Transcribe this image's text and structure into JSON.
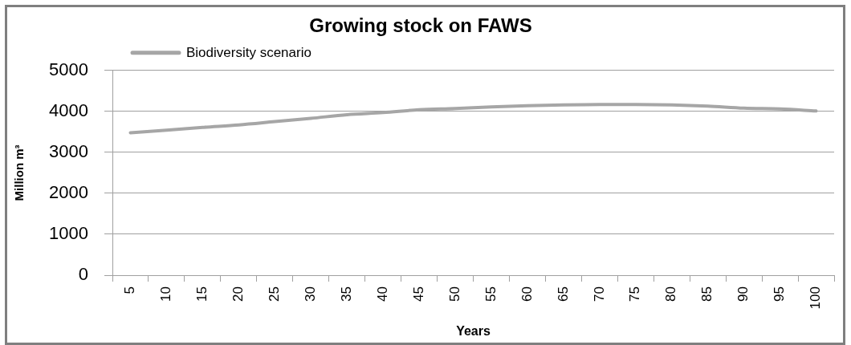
{
  "chart_data": {
    "type": "line",
    "title": "Growing stock on FAWS",
    "xlabel": "Years",
    "ylabel": "Million m³",
    "categories": [
      "5",
      "10",
      "15",
      "20",
      "25",
      "30",
      "35",
      "40",
      "45",
      "50",
      "55",
      "60",
      "65",
      "70",
      "75",
      "80",
      "85",
      "90",
      "95",
      "100"
    ],
    "series": [
      {
        "name": "Biodiversity scenario",
        "color": "#a6a6a6",
        "values": [
          3480,
          3540,
          3610,
          3670,
          3750,
          3830,
          3920,
          3970,
          4040,
          4070,
          4110,
          4140,
          4160,
          4170,
          4170,
          4160,
          4130,
          4080,
          4060,
          4010
        ]
      }
    ],
    "ylim": [
      0,
      5000
    ],
    "yticks": [
      0,
      1000,
      2000,
      3000,
      4000,
      5000
    ],
    "grid": "y",
    "legend": "top left",
    "marker": "none",
    "line_style": "solid"
  }
}
